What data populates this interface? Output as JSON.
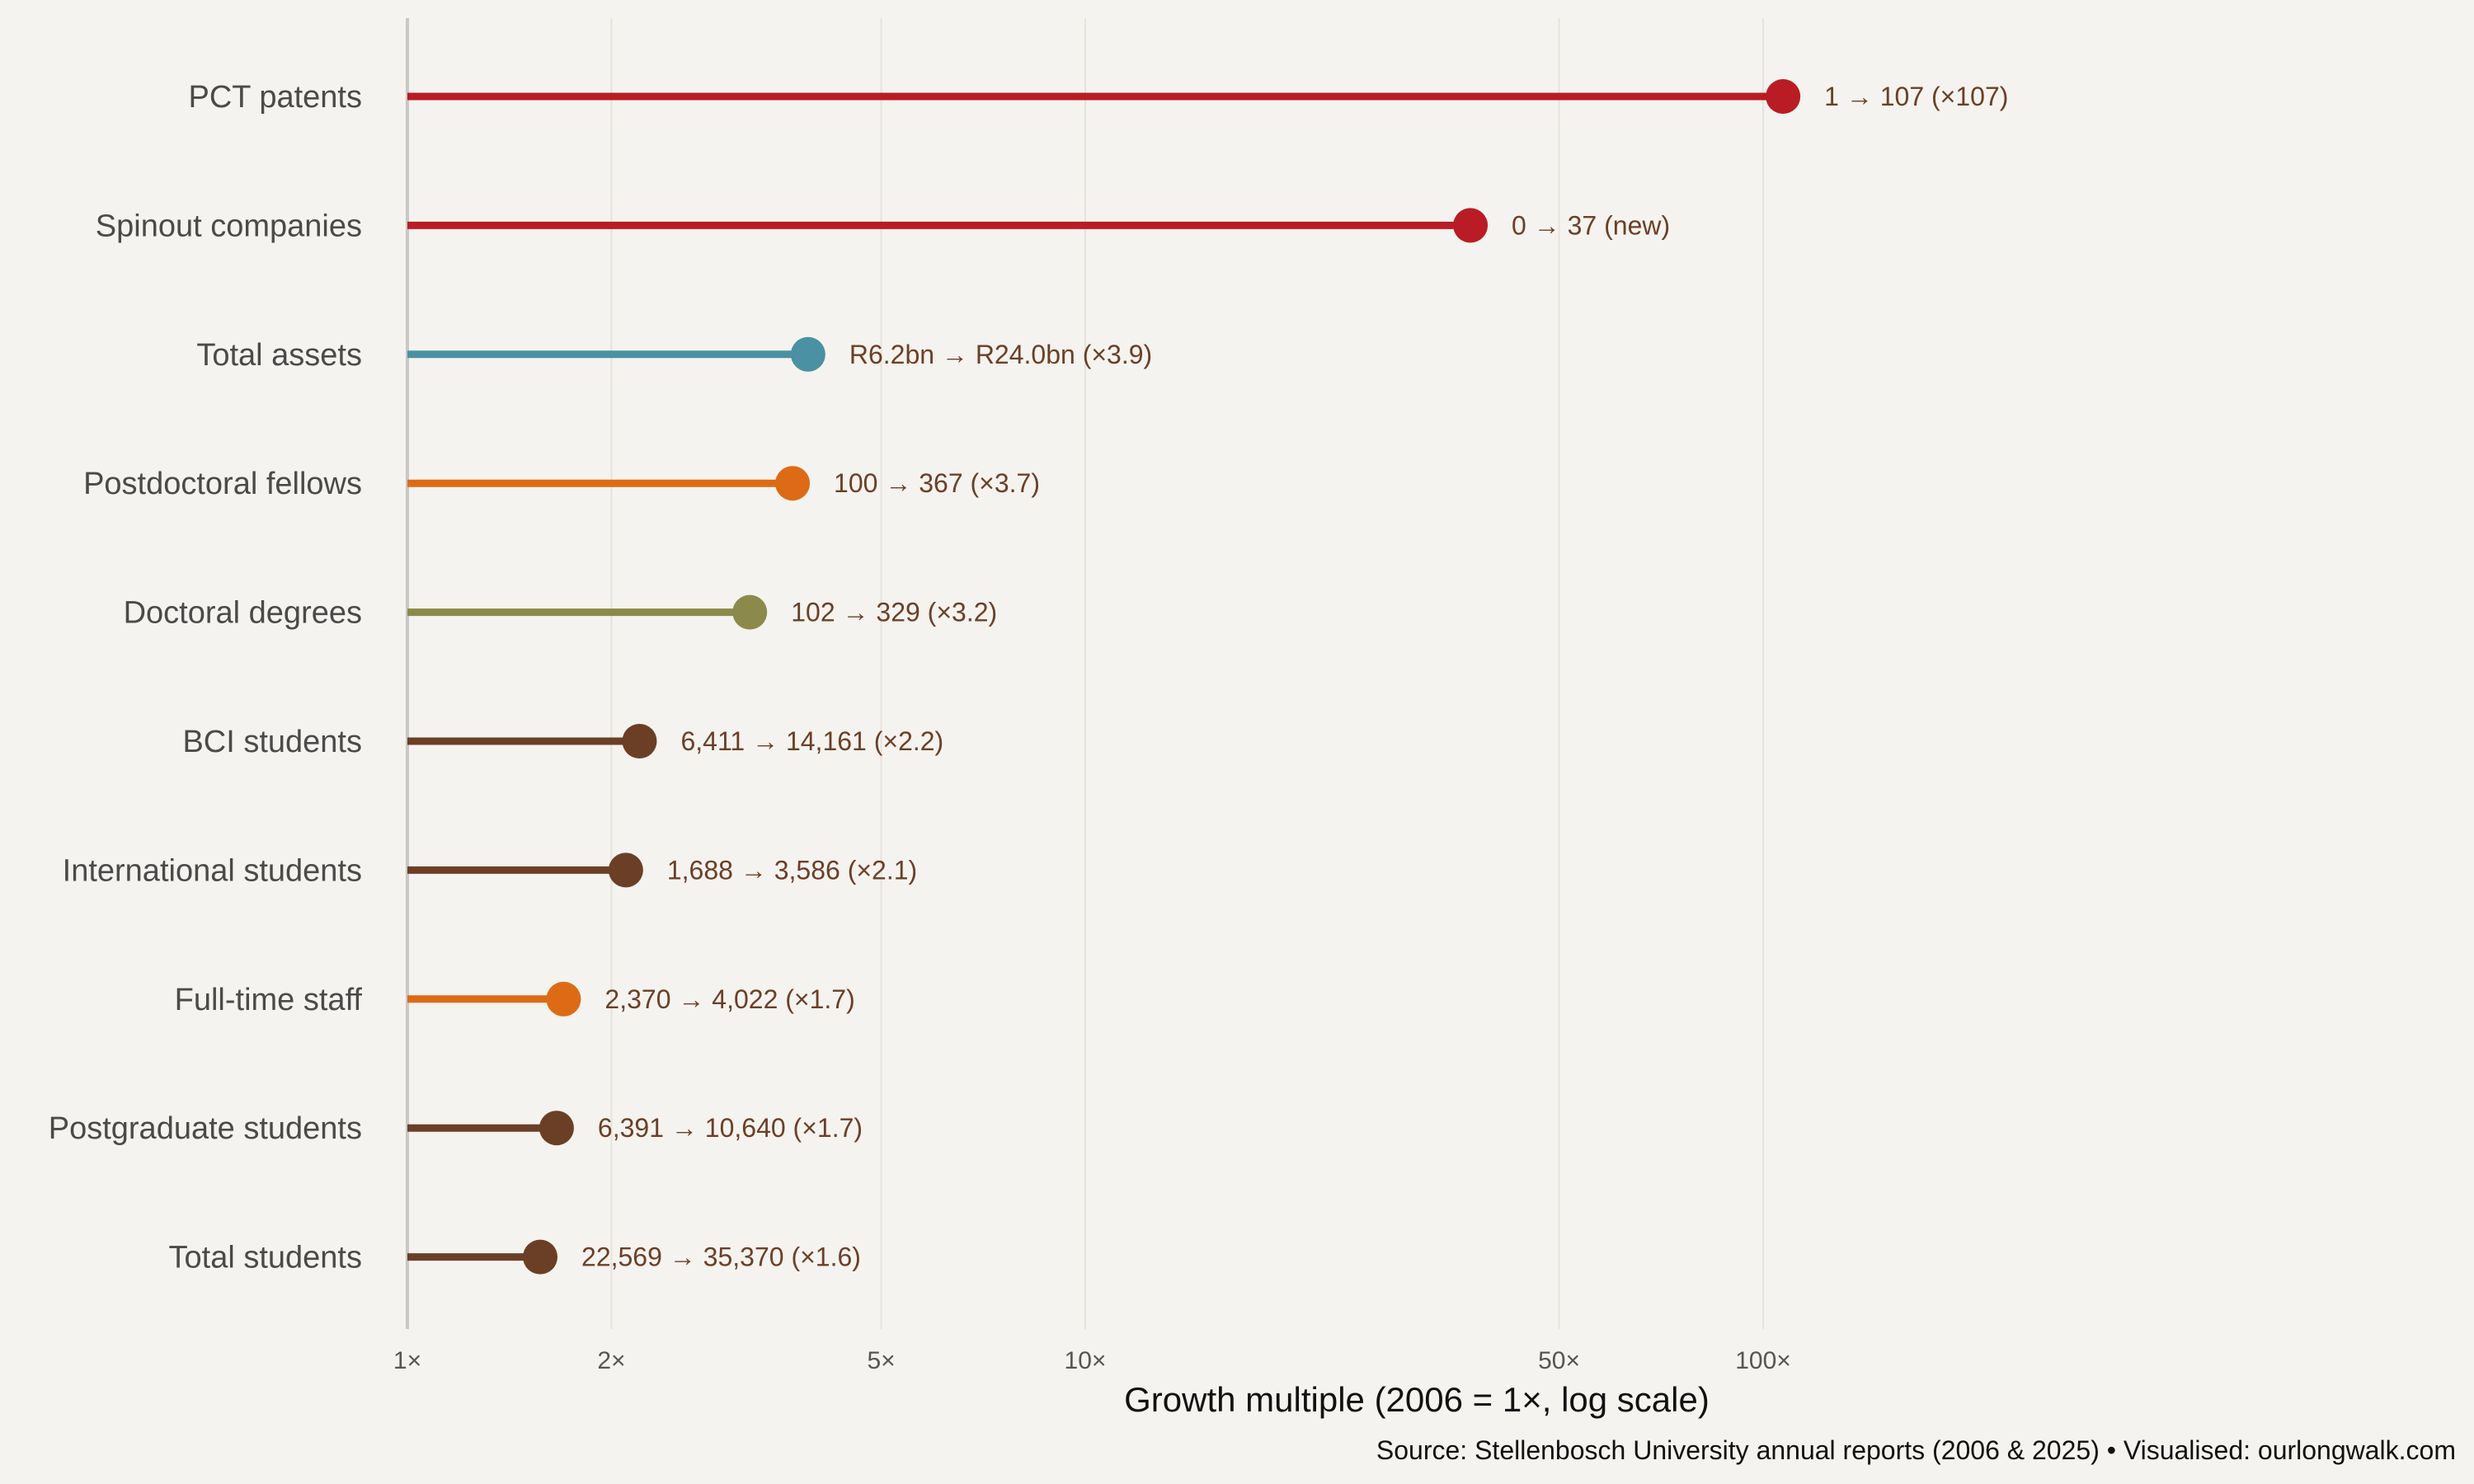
{
  "chart_data": {
    "type": "lollipop",
    "xlabel": "Growth multiple (2006 = 1×, log scale)",
    "xscale": "log",
    "xlim": [
      1,
      300
    ],
    "grid": true,
    "xticks": [
      {
        "value": 1,
        "label": "1×"
      },
      {
        "value": 2,
        "label": "2×"
      },
      {
        "value": 5,
        "label": "5×"
      },
      {
        "value": 10,
        "label": "10×"
      },
      {
        "value": 50,
        "label": "50×"
      },
      {
        "value": 100,
        "label": "100×"
      }
    ],
    "items": [
      {
        "category": "PCT patents",
        "multiple": 107,
        "label": "1 → 107  (×107)",
        "color": "#b91c24"
      },
      {
        "category": "Spinout companies",
        "multiple": 37,
        "label": "0 → 37  (new)",
        "color": "#b91c24"
      },
      {
        "category": "Total assets",
        "multiple": 3.9,
        "label": "R6.2bn → R24.0bn  (×3.9)",
        "color": "#4a91a3"
      },
      {
        "category": "Postdoctoral fellows",
        "multiple": 3.7,
        "label": "100 → 367  (×3.7)",
        "color": "#dd6b16"
      },
      {
        "category": "Doctoral degrees",
        "multiple": 3.2,
        "label": "102 → 329  (×3.2)",
        "color": "#8c8a4a"
      },
      {
        "category": "BCI students",
        "multiple": 2.2,
        "label": "6,411 → 14,161  (×2.2)",
        "color": "#6b3f26"
      },
      {
        "category": "International students",
        "multiple": 2.1,
        "label": "1,688 → 3,586  (×2.1)",
        "color": "#6b3f26"
      },
      {
        "category": "Full-time staff",
        "multiple": 1.7,
        "label": "2,370 → 4,022  (×1.7)",
        "color": "#dd6b16"
      },
      {
        "category": "Postgraduate students",
        "multiple": 1.66,
        "label": "6,391 → 10,640  (×1.7)",
        "color": "#6b3f26"
      },
      {
        "category": "Total students",
        "multiple": 1.57,
        "label": "22,569 → 35,370  (×1.6)",
        "color": "#6b3f26"
      }
    ],
    "source": "Source: Stellenbosch University annual reports (2006 & 2025) • Visualised: ourlongwalk.com"
  }
}
